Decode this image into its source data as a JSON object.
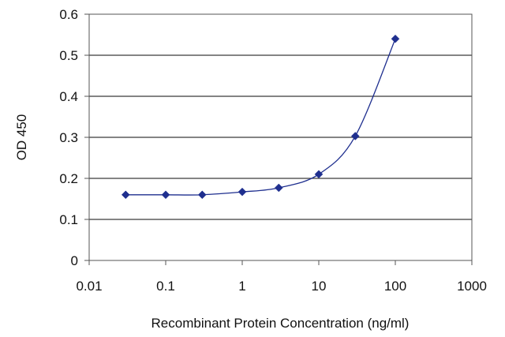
{
  "chart_data": {
    "type": "scatter",
    "title": "",
    "xlabel": "Recombinant Protein Concentration (ng/ml)",
    "ylabel": "OD 450",
    "x_scale": "log",
    "xlim": [
      0.01,
      1000
    ],
    "ylim": [
      0,
      0.6
    ],
    "x_ticks": [
      0.01,
      0.1,
      1,
      10,
      100,
      1000
    ],
    "x_tick_labels": [
      "0.01",
      "0.1",
      "1",
      "10",
      "100",
      "1000"
    ],
    "y_ticks": [
      0,
      0.1,
      0.2,
      0.3,
      0.4,
      0.5,
      0.6
    ],
    "y_tick_labels": [
      "0",
      "0.1",
      "0.2",
      "0.3",
      "0.4",
      "0.5",
      "0.6"
    ],
    "grid": "horizontal",
    "legend": "none",
    "colors": {
      "series": "#1f2f8f",
      "grid": "#3a3a3a",
      "axis": "#555555"
    },
    "series": [
      {
        "marker": "diamond",
        "fit_line": true,
        "x": [
          0.03,
          0.1,
          0.3,
          1,
          3,
          10,
          30,
          100
        ],
        "y": [
          0.16,
          0.16,
          0.16,
          0.167,
          0.177,
          0.21,
          0.303,
          0.54
        ]
      }
    ]
  }
}
